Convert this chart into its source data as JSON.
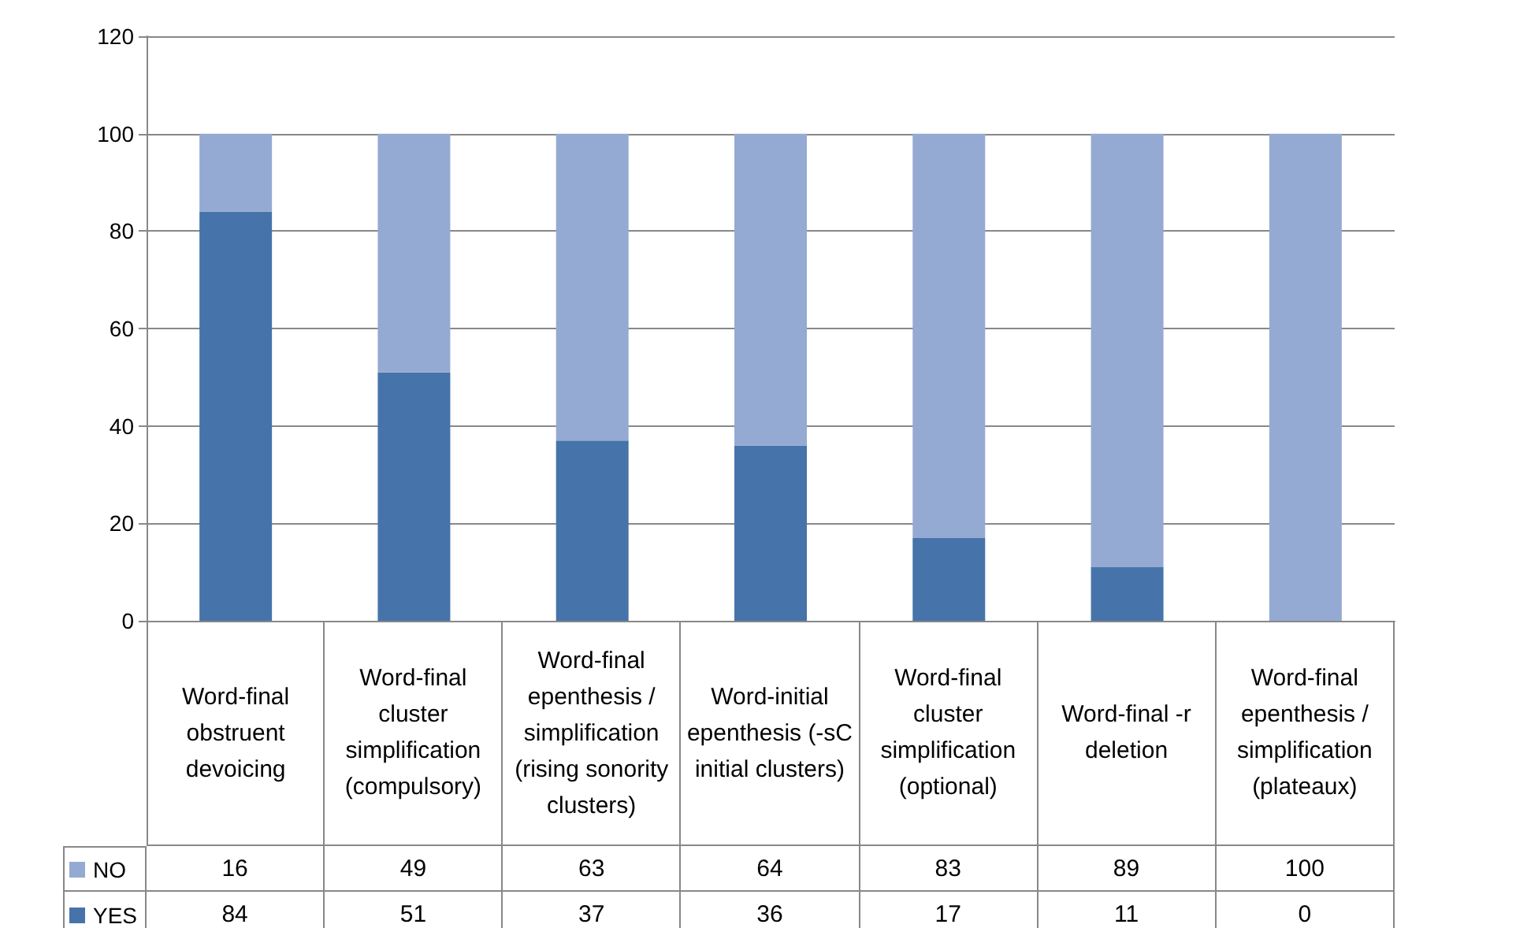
{
  "chart_data": {
    "type": "bar",
    "stacked": true,
    "categories": [
      "Word-final obstruent devoicing",
      "Word-final cluster simplification (compulsory)",
      "Word-final epenthesis / simplification (rising sonority clusters)",
      "Word-initial epenthesis (-sC initial clusters)",
      "Word-final cluster simplification (optional)",
      "Word-final -r deletion",
      "Word-final epenthesis / simplification (plateaux)"
    ],
    "series": [
      {
        "name": "YES",
        "color": "#4674aa",
        "values": [
          84,
          51,
          37,
          36,
          17,
          11,
          0
        ]
      },
      {
        "name": "NO",
        "color": "#95aad2",
        "values": [
          16,
          49,
          63,
          64,
          83,
          89,
          100
        ]
      }
    ],
    "ylim": [
      0,
      120
    ],
    "yticks": [
      0,
      20,
      40,
      60,
      80,
      100,
      120
    ],
    "grid": "y",
    "legend": "bottom left",
    "data_labels": true
  }
}
